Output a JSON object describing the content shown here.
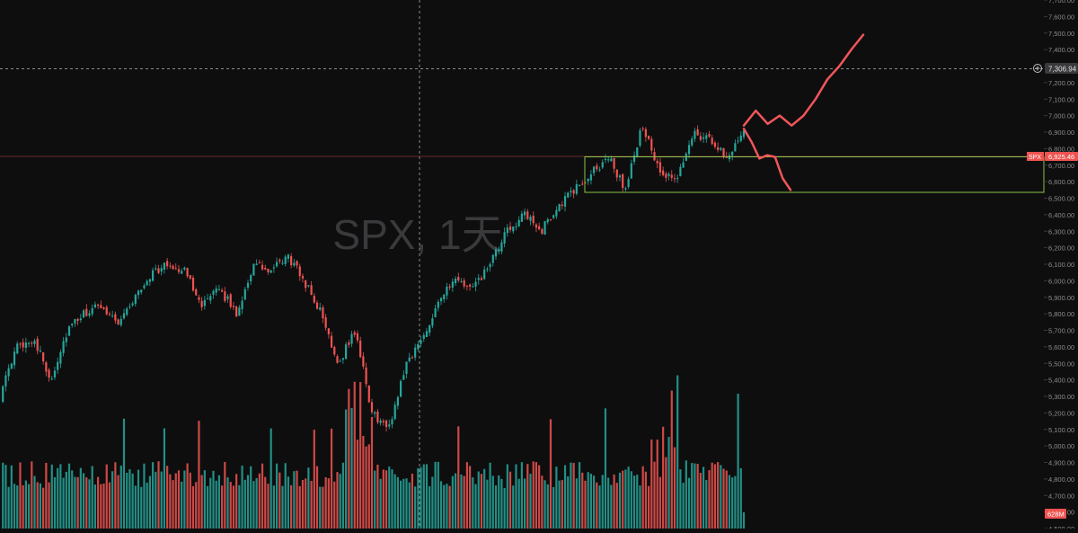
{
  "watermark": "SPX, 1天",
  "price_badges": {
    "symbol": "SPX",
    "last_price": "6,925.46",
    "crosshair_price": "7,306.94",
    "volume": "628M"
  },
  "colors": {
    "background": "#0e0e0f",
    "up": "#26a69a",
    "down": "#ef5350",
    "annotation": "#f0565a",
    "range_box": "#8bc34a",
    "axis_text": "#8c8c8c"
  },
  "chart_data": {
    "type": "candlestick",
    "title": "",
    "ylim": [
      4500,
      7700
    ],
    "y_ticks": [
      "7,700.00",
      "7,600.00",
      "7,500.00",
      "7,400.00",
      "7,200.00",
      "7,100.00",
      "7,000.00",
      "6,900.00",
      "6,800.00",
      "6,700.00",
      "6,600.00",
      "6,500.00",
      "6,400.00",
      "6,300.00",
      "6,200.00",
      "6,100.00",
      "6,000.00",
      "5,900.00",
      "5,800.00",
      "5,700.00",
      "5,600.00",
      "5,500.00",
      "5,400.00",
      "5,300.00",
      "5,200.00",
      "5,100.00",
      "5,000.00",
      "4,900.00",
      "4,800.00",
      "4,700.00",
      "4,600.00",
      "4,500.00"
    ],
    "last_price": 6925.46,
    "crosshair_price": 7306.94,
    "series": [
      {
        "name": "SPX",
        "close_anchors": [
          5300,
          5600,
          5650,
          5400,
          5700,
          5800,
          5850,
          5750,
          5900,
          6050,
          6100,
          6050,
          5850,
          5950,
          5800,
          6100,
          6050,
          6150,
          6000,
          5800,
          5500,
          5700,
          5200,
          5100,
          5500,
          5650,
          5900,
          6000,
          5950,
          6100,
          6300,
          6400,
          6300,
          6450,
          6550,
          6650,
          6750,
          6550,
          6950,
          6650,
          6600,
          6900,
          6850,
          6750,
          6920
        ],
        "range_box": {
          "high": 6930,
          "low": 6540
        },
        "projection_up": [
          6940,
          7030,
          6950,
          7000,
          6940,
          7000,
          7100,
          7220,
          7300,
          7400,
          7490
        ],
        "projection_down": [
          6920,
          6840,
          6740,
          6760,
          6750,
          6620,
          6550
        ]
      }
    ],
    "volume": {
      "max_label": "628M",
      "max_value": 628
    }
  }
}
